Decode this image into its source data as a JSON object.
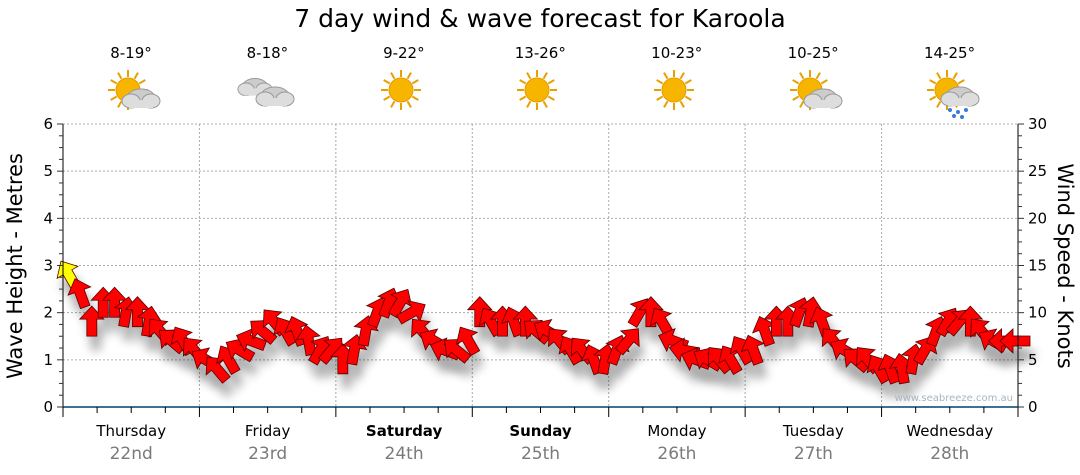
{
  "chart_data": {
    "type": "scatter",
    "title": "7 day wind & wave forecast for Karoola",
    "ylabel": "Wave Height - Metres",
    "y2label": "Wind Speed - Knots",
    "ylim": [
      0,
      6
    ],
    "y2lim": [
      0,
      30
    ],
    "yticks": [
      "0",
      "1",
      "2",
      "3",
      "4",
      "5",
      "6"
    ],
    "y2ticks": [
      "0",
      "5",
      "10",
      "15",
      "20",
      "25",
      "30"
    ],
    "watermark": "www.seabreeze.com.au",
    "days": [
      {
        "name": "Thursday",
        "date": "22nd",
        "temp": "8-19°",
        "icon": "partly-cloudy",
        "bold": false
      },
      {
        "name": "Friday",
        "date": "23rd",
        "temp": "8-18°",
        "icon": "cloudy",
        "bold": false
      },
      {
        "name": "Saturday",
        "date": "24th",
        "temp": "9-22°",
        "icon": "sunny",
        "bold": true
      },
      {
        "name": "Sunday",
        "date": "25th",
        "temp": "13-26°",
        "icon": "sunny",
        "bold": true
      },
      {
        "name": "Monday",
        "date": "26th",
        "temp": "10-23°",
        "icon": "sunny",
        "bold": false
      },
      {
        "name": "Tuesday",
        "date": "27th",
        "temp": "10-25°",
        "icon": "partly-cloudy",
        "bold": false
      },
      {
        "name": "Wednesday",
        "date": "28th",
        "temp": "14-25°",
        "icon": "showers",
        "bold": false
      }
    ],
    "wind_knots": [
      14,
      12,
      9,
      11,
      11,
      10,
      10,
      9,
      8,
      7,
      7,
      6,
      5,
      4,
      5,
      6,
      7,
      8,
      9,
      8,
      8,
      7,
      6,
      6,
      5,
      6,
      8,
      10,
      11,
      11,
      10,
      8,
      7,
      6,
      6,
      7,
      10,
      9,
      9,
      9,
      9,
      8,
      8,
      7,
      6,
      6,
      5,
      5,
      6,
      7,
      10,
      10,
      9,
      7,
      6,
      5,
      5,
      5,
      5,
      6,
      6,
      8,
      9,
      9,
      10,
      10,
      9,
      7,
      6,
      5,
      5,
      4,
      4,
      4,
      5,
      6,
      8,
      9,
      9,
      9,
      8,
      7,
      7,
      7
    ],
    "wind_dir_deg": [
      -30,
      -20,
      0,
      0,
      0,
      10,
      0,
      10,
      -40,
      -50,
      -30,
      -40,
      -60,
      -40,
      -30,
      -60,
      -70,
      -50,
      -40,
      -30,
      -20,
      -10,
      30,
      40,
      0,
      10,
      10,
      20,
      20,
      30,
      60,
      -40,
      -60,
      -70,
      -50,
      -30,
      0,
      -30,
      0,
      -20,
      0,
      -50,
      -60,
      -40,
      -30,
      -40,
      -20,
      10,
      20,
      40,
      30,
      0,
      -30,
      -70,
      -80,
      -70,
      -60,
      -40,
      -30,
      -30,
      -20,
      -20,
      0,
      0,
      20,
      10,
      -20,
      -40,
      -60,
      -50,
      -40,
      -30,
      -20,
      -10,
      10,
      30,
      20,
      30,
      40,
      0,
      -40,
      -60,
      -90,
      -90
    ],
    "wind_color_threshold": 13.5,
    "colors": {
      "strong": "#ffff00",
      "normal": "#ff0000",
      "axis": "#00406b"
    }
  }
}
